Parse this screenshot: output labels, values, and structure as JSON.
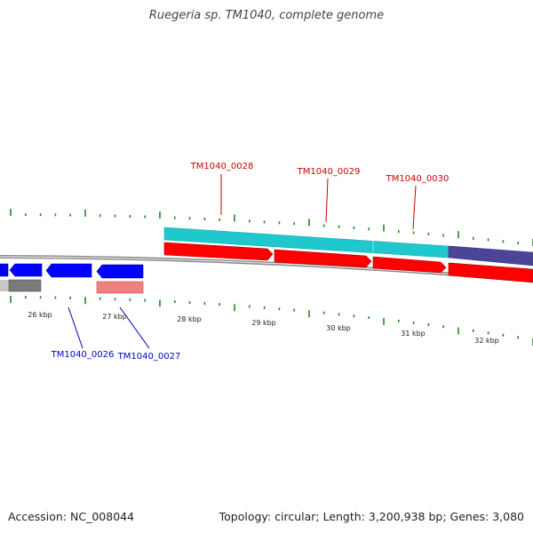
{
  "title": "Ruegeria sp. TM1040, complete genome",
  "footer": {
    "accession": "Accession: NC_008044",
    "summary": "Topology: circular; Length: 3,200,938 bp; Genes: 3,080"
  },
  "colors": {
    "forward_gene": "#ff0000",
    "reverse_gene": "#0000ff",
    "cds_cyan": "#1fc8cc",
    "cds_purple": "#4a4596",
    "reverse_feature_pink": "#f08080",
    "reverse_feature_gray": "#7a7a7a",
    "tick": "#228b22",
    "forward_label": "#cc0000",
    "reverse_label": "#0000cc"
  },
  "scale_ticks": [
    {
      "label": "26 kbp",
      "kbp": 26
    },
    {
      "label": "27 kbp",
      "kbp": 27
    },
    {
      "label": "28 kbp",
      "kbp": 28
    },
    {
      "label": "29 kbp",
      "kbp": 29
    },
    {
      "label": "30 kbp",
      "kbp": 30
    },
    {
      "label": "31 kbp",
      "kbp": 31
    },
    {
      "label": "32 kbp",
      "kbp": 32
    }
  ],
  "forward_gene_labels": [
    "TM1040_0028",
    "TM1040_0029",
    "TM1040_0030"
  ],
  "reverse_gene_labels": [
    "TM1040_0026",
    "TM1040_0027"
  ]
}
